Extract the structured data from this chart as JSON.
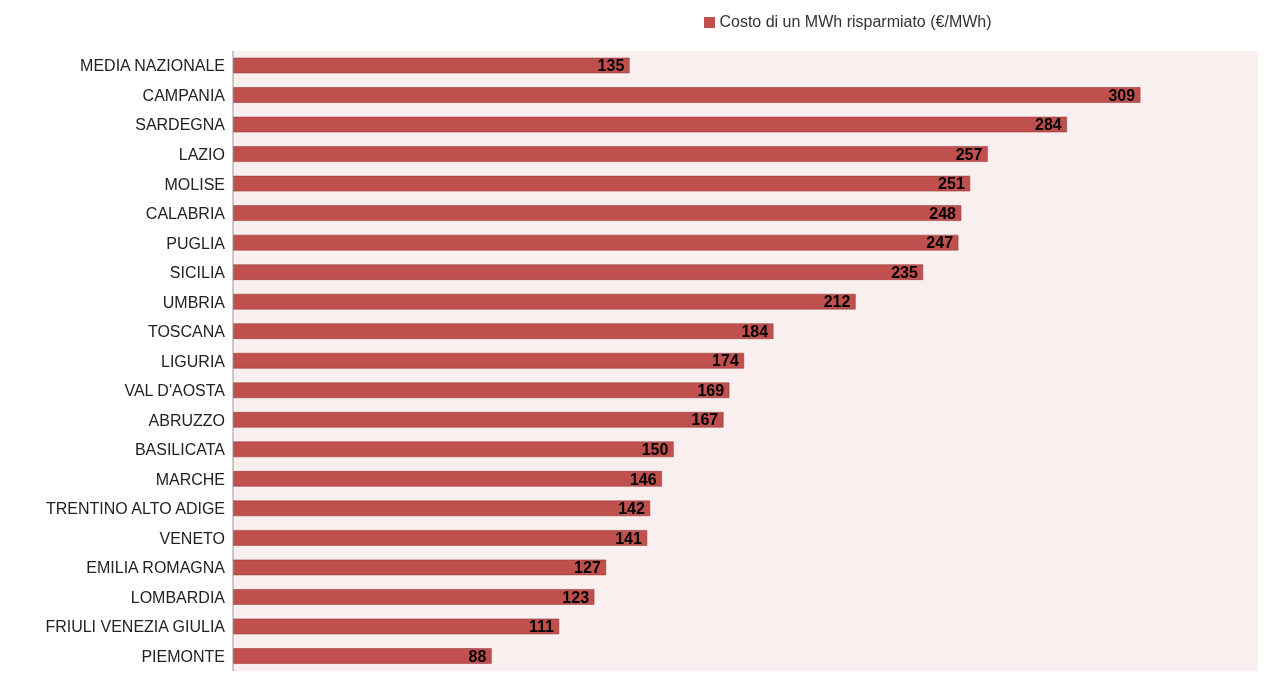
{
  "chart_data": {
    "type": "bar",
    "orientation": "horizontal",
    "categories": [
      "MEDIA NAZIONALE",
      "CAMPANIA",
      "SARDEGNA",
      "LAZIO",
      "MOLISE",
      "CALABRIA",
      "PUGLIA",
      "SICILIA",
      "UMBRIA",
      "TOSCANA",
      "LIGURIA",
      "VAL D'AOSTA",
      "ABRUZZO",
      "BASILICATA",
      "MARCHE",
      "TRENTINO ALTO ADIGE",
      "VENETO",
      "EMILIA ROMAGNA",
      "LOMBARDIA",
      "FRIULI VENEZIA GIULIA",
      "PIEMONTE"
    ],
    "series": [
      {
        "name": "Costo di un MWh risparmiato (€/MWh)",
        "color": "#c0504d",
        "values": [
          135,
          309,
          284,
          257,
          251,
          248,
          247,
          235,
          212,
          184,
          174,
          169,
          167,
          150,
          146,
          142,
          141,
          127,
          123,
          111,
          88
        ]
      }
    ],
    "data_labels": true,
    "legend": "top",
    "grid": false
  }
}
